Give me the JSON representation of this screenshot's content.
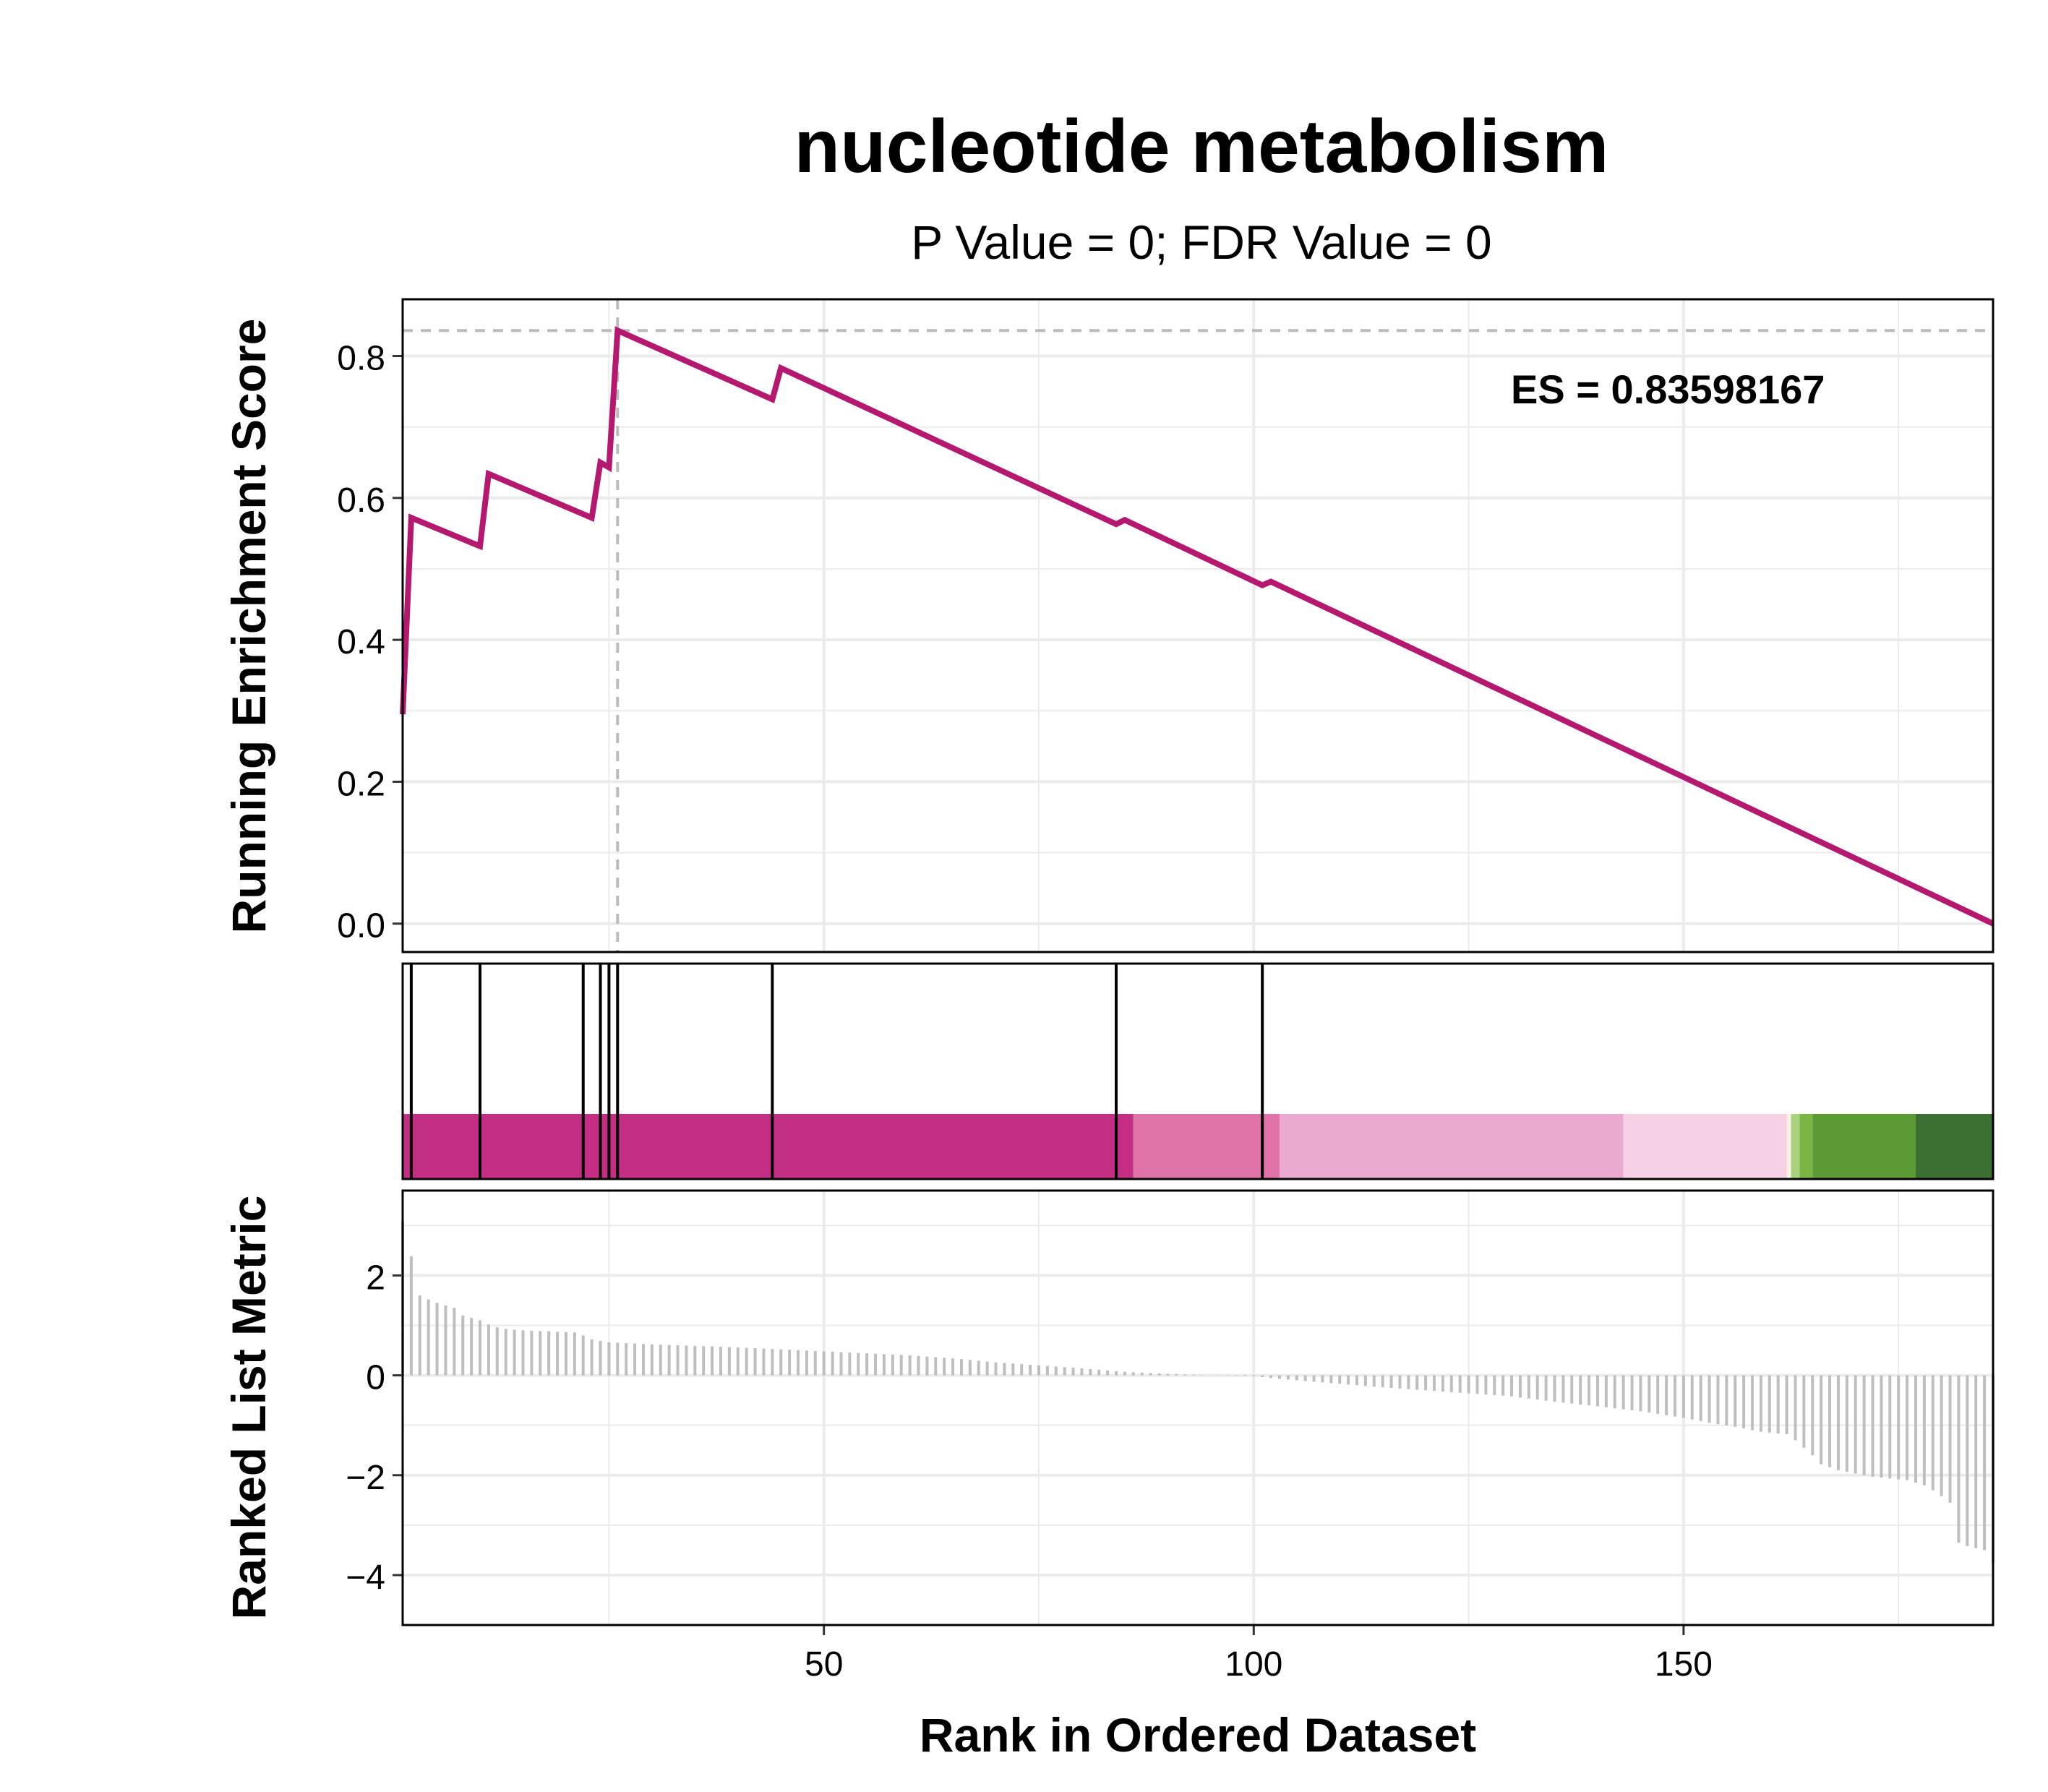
{
  "title": "nucleotide metabolism",
  "subtitle": "P Value = 0; FDR Value = 0",
  "es_label": "ES = 0.83598167",
  "colors": {
    "line": "#B5186F",
    "grid": "#EBEBEB",
    "guide": "#BBBBBB",
    "hit": "#000000",
    "metric_bar": "#BEBEBE",
    "es_text": "#999999",
    "heat": [
      "#C42E84",
      "#E073A8",
      "#EAA9CE",
      "#F6D1E6",
      "#F8F1E4",
      "#D5E8B5",
      "#A9D27E",
      "#7BB546",
      "#5B9A35",
      "#3C7032"
    ]
  },
  "chart_data": [
    {
      "type": "line",
      "ylabel": "Running Enrichment Score",
      "xlim": [
        1,
        186
      ],
      "ylim": [
        -0.04,
        0.88
      ],
      "yticks": [
        0.0,
        0.2,
        0.4,
        0.6,
        0.8
      ],
      "ytick_labels": [
        "0.0",
        "0.2",
        "0.4",
        "0.6",
        "0.8"
      ],
      "max_es": 0.83598167,
      "max_es_rank": 26,
      "series": [
        {
          "x": [
            1,
            2,
            10,
            11,
            23,
            24,
            25,
            26,
            44,
            45,
            84,
            85,
            101,
            102,
            186
          ],
          "values": [
            0.295,
            0.572,
            0.532,
            0.634,
            0.572,
            0.65,
            0.643,
            0.836,
            0.739,
            0.783,
            0.563,
            0.569,
            0.477,
            0.482,
            0.0
          ]
        }
      ]
    },
    {
      "type": "heatmap",
      "hits": [
        2,
        10,
        22,
        24,
        25,
        26,
        44,
        84,
        101
      ],
      "color_bands": [
        {
          "from": 1,
          "to": 86,
          "color_index": 0
        },
        {
          "from": 86,
          "to": 103,
          "color_index": 1
        },
        {
          "from": 103,
          "to": 143,
          "color_index": 2
        },
        {
          "from": 143,
          "to": 162,
          "color_index": 3
        },
        {
          "from": 162,
          "to": 162.5,
          "color_index": 4
        },
        {
          "from": 162.5,
          "to": 163.5,
          "color_index": 6
        },
        {
          "from": 163.5,
          "to": 165,
          "color_index": 7
        },
        {
          "from": 165,
          "to": 177,
          "color_index": 8
        },
        {
          "from": 177,
          "to": 186,
          "color_index": 9
        }
      ]
    },
    {
      "type": "bar",
      "ylabel": "Ranked List Metric",
      "xlabel": "Rank in Ordered Dataset",
      "xlim": [
        1,
        186
      ],
      "ylim": [
        -5,
        3.7
      ],
      "yticks": [
        -4,
        -2,
        0,
        2
      ],
      "ytick_labels": [
        "−4",
        "−2",
        "0",
        "2"
      ],
      "xticks": [
        50,
        100,
        150
      ],
      "xtick_labels": [
        "50",
        "100",
        "150"
      ],
      "keypoints": [
        [
          1,
          3.08
        ],
        [
          2,
          2.38
        ],
        [
          3,
          1.6
        ],
        [
          4,
          1.52
        ],
        [
          5,
          1.45
        ],
        [
          6,
          1.4
        ],
        [
          7,
          1.35
        ],
        [
          8,
          1.2
        ],
        [
          9,
          1.15
        ],
        [
          10,
          1.1
        ],
        [
          11,
          1.02
        ],
        [
          12,
          0.96
        ],
        [
          13,
          0.93
        ],
        [
          15,
          0.9
        ],
        [
          18,
          0.88
        ],
        [
          21,
          0.86
        ],
        [
          22,
          0.8
        ],
        [
          23,
          0.72
        ],
        [
          25,
          0.66
        ],
        [
          30,
          0.62
        ],
        [
          40,
          0.56
        ],
        [
          50,
          0.48
        ],
        [
          60,
          0.4
        ],
        [
          65,
          0.34
        ],
        [
          70,
          0.26
        ],
        [
          75,
          0.2
        ],
        [
          80,
          0.14
        ],
        [
          85,
          0.07
        ],
        [
          90,
          0.03
        ],
        [
          95,
          0.0
        ],
        [
          100,
          -0.02
        ],
        [
          105,
          -0.1
        ],
        [
          110,
          -0.17
        ],
        [
          115,
          -0.24
        ],
        [
          120,
          -0.3
        ],
        [
          125,
          -0.36
        ],
        [
          130,
          -0.42
        ],
        [
          135,
          -0.53
        ],
        [
          140,
          -0.62
        ],
        [
          145,
          -0.72
        ],
        [
          150,
          -0.85
        ],
        [
          153,
          -0.95
        ],
        [
          156,
          -1.03
        ],
        [
          159,
          -1.13
        ],
        [
          162,
          -1.18
        ],
        [
          163,
          -1.3
        ],
        [
          164,
          -1.45
        ],
        [
          165,
          -1.6
        ],
        [
          166,
          -1.78
        ],
        [
          168,
          -1.9
        ],
        [
          172,
          -2.03
        ],
        [
          176,
          -2.1
        ],
        [
          178,
          -2.2
        ],
        [
          179,
          -2.3
        ],
        [
          180,
          -2.42
        ],
        [
          181,
          -2.55
        ],
        [
          182,
          -3.35
        ],
        [
          183,
          -3.42
        ],
        [
          184,
          -3.46
        ],
        [
          185,
          -3.5
        ],
        [
          186,
          -3.75
        ]
      ]
    }
  ]
}
